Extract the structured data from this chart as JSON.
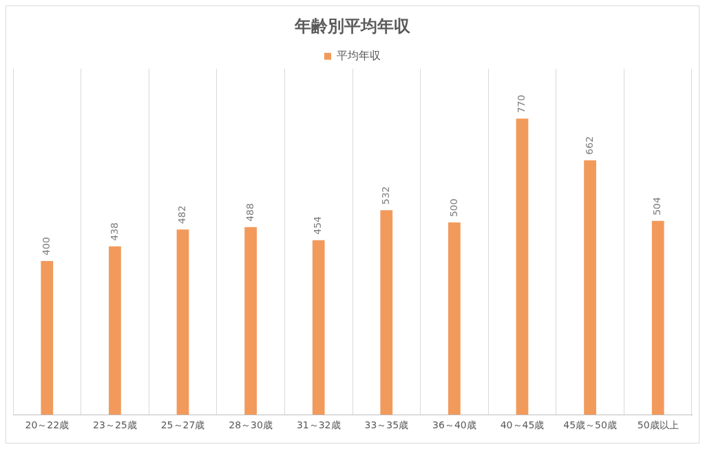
{
  "chart_data": {
    "type": "bar",
    "title": "年齢別平均年収",
    "categories": [
      "20～22歳",
      "23～25歳",
      "25～27歳",
      "28～30歳",
      "31～32歳",
      "33～35歳",
      "36～40歳",
      "40～45歳",
      "45歳～50歳",
      "50歳以上"
    ],
    "series": [
      {
        "name": "平均年収",
        "color": "#f29a5b",
        "values": [
          400,
          438,
          482,
          488,
          454,
          532,
          500,
          770,
          662,
          504
        ]
      }
    ],
    "data_labels": true,
    "grid": "x",
    "legend": "top"
  }
}
